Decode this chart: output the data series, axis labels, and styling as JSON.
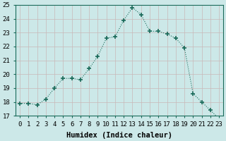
{
  "x": [
    0,
    1,
    2,
    3,
    4,
    5,
    6,
    7,
    8,
    9,
    10,
    11,
    12,
    13,
    14,
    15,
    16,
    17,
    18,
    19,
    20,
    21,
    22,
    23
  ],
  "y": [
    17.9,
    17.9,
    17.8,
    18.2,
    19.0,
    19.7,
    19.7,
    19.6,
    20.4,
    21.3,
    22.6,
    22.7,
    23.9,
    24.8,
    24.3,
    23.1,
    23.1,
    22.9,
    22.6,
    21.9,
    18.6,
    18.0,
    17.4,
    16.8
  ],
  "line_color": "#1a6b5a",
  "marker": "+",
  "marker_size": 4,
  "bg_color": "#cce8e8",
  "grid_major_color": "#c8b8b8",
  "grid_minor_color": "#d8c8c8",
  "xlabel": "Humidex (Indice chaleur)",
  "xlim": [
    -0.5,
    23.5
  ],
  "ylim": [
    17,
    25
  ],
  "yticks": [
    17,
    18,
    19,
    20,
    21,
    22,
    23,
    24,
    25
  ],
  "xticks": [
    0,
    1,
    2,
    3,
    4,
    5,
    6,
    7,
    8,
    9,
    10,
    11,
    12,
    13,
    14,
    15,
    16,
    17,
    18,
    19,
    20,
    21,
    22,
    23
  ],
  "tick_label_fontsize": 6.5,
  "xlabel_fontsize": 7.5
}
